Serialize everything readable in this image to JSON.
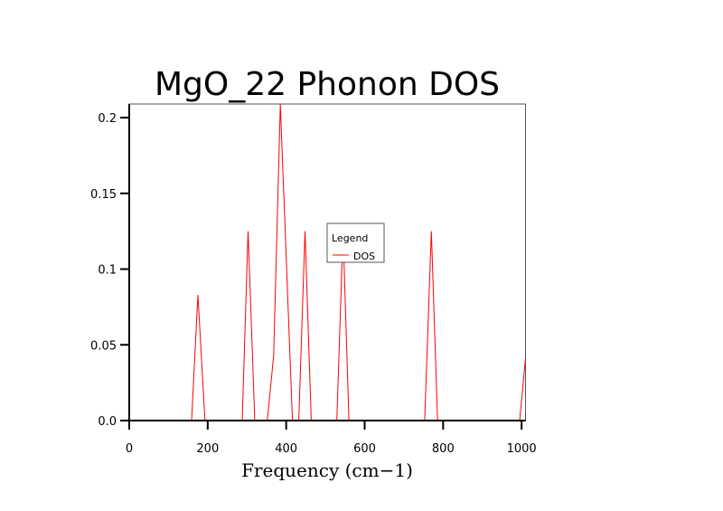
{
  "chart_data": {
    "type": "line",
    "title": "MgO_22 Phonon DOS",
    "xlabel": "Frequency (cm−1)",
    "ylabel": "",
    "xlim": [
      0,
      1010
    ],
    "ylim": [
      0,
      0.209
    ],
    "xticks": [
      0,
      200,
      400,
      600,
      800,
      1000
    ],
    "xtick_labels": [
      "0",
      "200",
      "400",
      "600",
      "800",
      "1000"
    ],
    "yticks": [
      0,
      0.05,
      0.1,
      0.15,
      0.2
    ],
    "ytick_labels": [
      "0.0",
      "0.05",
      "0.1",
      "0.15",
      "0.2"
    ],
    "grid": false,
    "legend": {
      "title": "Legend",
      "placement": "center"
    },
    "series": [
      {
        "name": "DOS",
        "color": "#ff0000",
        "x": [
          0,
          159,
          175,
          193,
          288,
          303,
          320,
          352,
          368,
          385,
          416,
          432,
          448,
          464,
          529,
          545,
          560,
          753,
          770,
          786,
          995,
          1010
        ],
        "y": [
          0,
          0,
          0.083,
          0,
          0,
          0.125,
          0,
          0,
          0.043,
          0.209,
          0,
          0,
          0.125,
          0,
          0,
          0.125,
          0,
          0,
          0.125,
          0,
          0,
          0.041
        ]
      }
    ]
  }
}
